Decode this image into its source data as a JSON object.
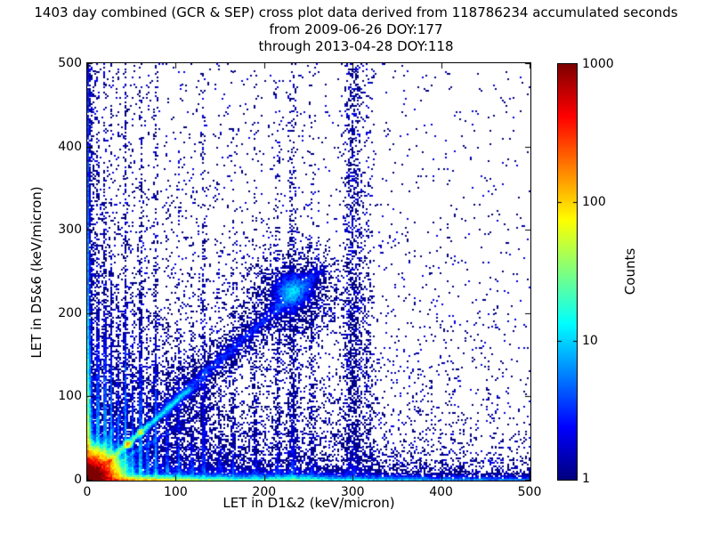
{
  "chart_data": {
    "type": "heatmap",
    "title": "1403 day combined (GCR & SEP) cross plot data derived from 118786234 accumulated seconds",
    "subtitle1": "from 2009-06-26 DOY:177",
    "subtitle2": "through 2013-04-28 DOY:118",
    "xlabel": "LET in D1&2 (keV/micron)",
    "ylabel": "LET in D5&6 (keV/micron)",
    "xlim": [
      0,
      500
    ],
    "ylim": [
      0,
      500
    ],
    "x_ticks": [
      0,
      100,
      200,
      300,
      400,
      500
    ],
    "y_ticks": [
      0,
      100,
      200,
      300,
      400,
      500
    ],
    "grid": false,
    "background": "#ffffff",
    "dot_color_low": "#00008b",
    "colorbar": {
      "label": "Counts",
      "scale": "log",
      "ticks": [
        1,
        10,
        100,
        1000
      ],
      "range": [
        1,
        1000
      ],
      "colormap": "jet",
      "position": "right"
    },
    "features": [
      "intense dark-red hotspot at origin (LET < ~20 keV/micron in both detectors), counts ~1000",
      "red-to-yellow-to-cyan halo around origin out to ~50 keV/micron",
      "bright cyan coincidence diagonal y~x from origin to ~(110,110) with yellow knots near (25,23) and (46,44)",
      "diffuse blue diagonal band continuing to a dense blue cluster centered near (231,228)",
      "dense multicolored band along x-axis (y<10) fading from red/orange to cyan/blue out to x=500",
      "dense blue band along y-axis (x<5) over the full height",
      "vertical element stripes at x ~ 12,20,27,35,43,51,60,68,77,90,103,132,165,190,232 fading with height",
      "broad sparse vertical band near x~300 reaching the top of the plot",
      "sparse isolated single-count dark blue dots scattered over the whole plane, thinning toward upper right"
    ],
    "density_model": {
      "seed": 42,
      "cell_units": 2,
      "max_count": 1500,
      "components": [
        {
          "k": "rpow",
          "amp": 4000,
          "cx": 0,
          "cy": 0,
          "s": 14,
          "p": 1.5
        },
        {
          "k": "rgauss",
          "amp": 250,
          "cx": 25,
          "cy": 23,
          "s": 3
        },
        {
          "k": "rgauss",
          "amp": 120,
          "cx": 46,
          "cy": 44,
          "s": 3
        },
        {
          "k": "rgauss",
          "amp": 60,
          "cx": 60,
          "cy": 58,
          "s": 3
        },
        {
          "k": "ridge",
          "x1": 8,
          "y1": 8,
          "x2": 115,
          "y2": 110,
          "amp": 55,
          "w": 2.6,
          "s": 60
        },
        {
          "k": "ridge",
          "x1": 90,
          "y1": 86,
          "x2": 262,
          "y2": 252,
          "amp": 2.6,
          "w": 6,
          "s": 400
        },
        {
          "k": "ridge",
          "x1": 90,
          "y1": 86,
          "x2": 255,
          "y2": 245,
          "amp": 0.9,
          "w": 20,
          "s": 400
        },
        {
          "k": "ridge",
          "x1": 5,
          "y1": 3,
          "x2": 150,
          "y2": 95,
          "amp": 10,
          "w": 2.4,
          "s": 50
        },
        {
          "k": "ridge",
          "x1": 3,
          "y1": 5,
          "x2": 55,
          "y2": 115,
          "amp": 9,
          "w": 2.2,
          "s": 45
        },
        {
          "k": "rgauss",
          "amp": 6,
          "cx": 231,
          "cy": 228,
          "s": 14
        },
        {
          "k": "rgauss",
          "amp": 1.1,
          "cx": 233,
          "cy": 222,
          "s": 40
        },
        {
          "k": "hband",
          "amp": 600,
          "sx": 45,
          "sy": 1.8
        },
        {
          "k": "hband",
          "amp": 28,
          "sx": 280,
          "sy": 2.2
        },
        {
          "k": "hbandg",
          "amp": 15,
          "cx": 235,
          "sx": 30,
          "sy": 3
        },
        {
          "k": "hband",
          "amp": 5,
          "sx": 400,
          "sy": 7
        },
        {
          "k": "hband",
          "amp": 1.4,
          "sx": 500,
          "sy": 16
        },
        {
          "k": "vband",
          "amp": 350,
          "sy": 45,
          "sx": 1.6
        },
        {
          "k": "vband",
          "amp": 20,
          "sy": 250,
          "sx": 1.4
        },
        {
          "k": "vband",
          "amp": 3.5,
          "sy": 500,
          "sx": 4
        },
        {
          "k": "hband",
          "amp": 2.2,
          "sx": 130,
          "sy": 55
        },
        {
          "k": "hband",
          "amp": 0.4,
          "sx": 280,
          "sy": 170
        },
        {
          "k": "const",
          "amp": 0.012
        }
      ],
      "stripes": [
        [
          12,
          22,
          70,
          1.6,
          0.22
        ],
        [
          20,
          18,
          80,
          1.6,
          0.28
        ],
        [
          27,
          15,
          70,
          1.6,
          0.2
        ],
        [
          35,
          11,
          55,
          1.6,
          0.1
        ],
        [
          43,
          13,
          90,
          1.7,
          0.26
        ],
        [
          51,
          9,
          55,
          1.6,
          0.08
        ],
        [
          60,
          11,
          85,
          1.7,
          0.22
        ],
        [
          68,
          7,
          50,
          1.6,
          0.06
        ],
        [
          77,
          8,
          90,
          1.7,
          0.18
        ],
        [
          90,
          5,
          55,
          1.7,
          0.05
        ],
        [
          103,
          4,
          65,
          1.8,
          0.08
        ],
        [
          118,
          2.5,
          60,
          1.8,
          0.04
        ],
        [
          132,
          3,
          110,
          2,
          0.12
        ],
        [
          150,
          1.8,
          70,
          2,
          0.04
        ],
        [
          165,
          2,
          90,
          2.2,
          0.06
        ],
        [
          190,
          1.8,
          90,
          2.5,
          0.06
        ],
        [
          215,
          1.6,
          110,
          3,
          0.05
        ],
        [
          232,
          2,
          160,
          4,
          0.07
        ],
        [
          253,
          1.2,
          120,
          3,
          0.04
        ],
        [
          300,
          1,
          400,
          8,
          0.26
        ],
        [
          318,
          0.5,
          200,
          5,
          0.08
        ]
      ]
    }
  }
}
